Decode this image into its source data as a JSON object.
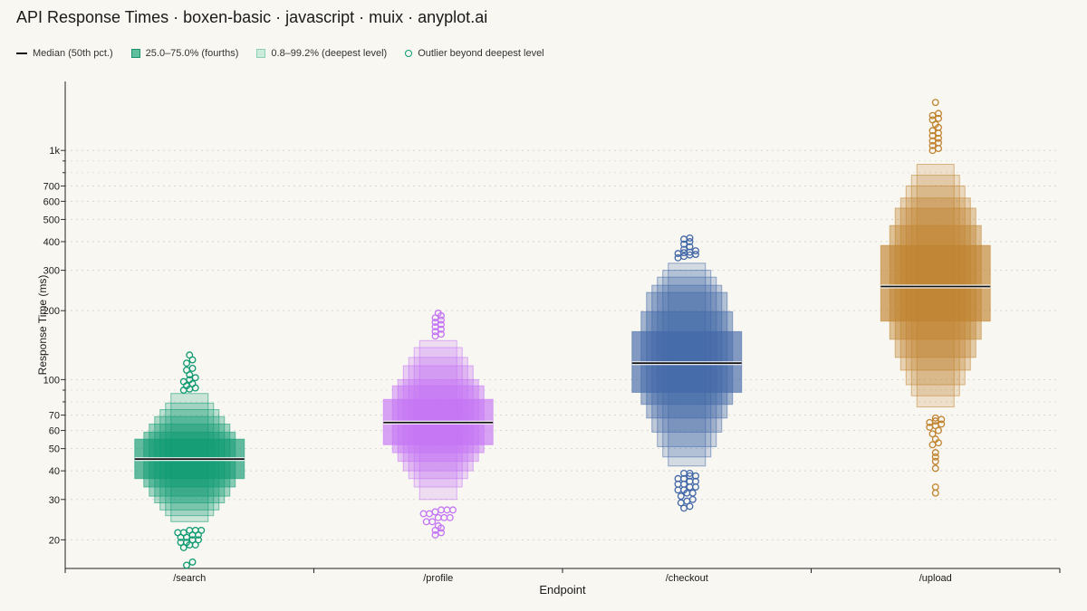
{
  "title": "API Response Times · boxen-basic · javascript · muix · anyplot.ai",
  "legend": {
    "median": "Median (50th pct.)",
    "fourths": "25.0–75.0% (fourths)",
    "deepest": "0.8–99.2% (deepest level)",
    "outlier": "Outlier beyond deepest level"
  },
  "chart_data": {
    "type": "boxen",
    "title": "API Response Times · boxen-basic · javascript · muix · anyplot.ai",
    "xlabel": "Endpoint",
    "ylabel": "Response Time (ms)",
    "y_scale": "log",
    "ylim": [
      15,
      2000
    ],
    "y_ticks": [
      20,
      30,
      40,
      50,
      60,
      70,
      100,
      200,
      300,
      400,
      500,
      600,
      700,
      1000
    ],
    "y_tick_labels": [
      "20",
      "30",
      "40",
      "50",
      "60",
      "70",
      "100",
      "200",
      "300",
      "400",
      "500",
      "600",
      "700",
      "1k"
    ],
    "y_minor_ticks": [
      80,
      90,
      800,
      900
    ],
    "grid": true,
    "legend_position": "top-left",
    "categories": [
      "/search",
      "/profile",
      "/checkout",
      "/upload"
    ],
    "series": [
      {
        "category": "/search",
        "color": "#0f9a72",
        "median": 45,
        "levels": [
          {
            "lo": 37,
            "hi": 55
          },
          {
            "lo": 34,
            "hi": 59
          },
          {
            "lo": 31,
            "hi": 64
          },
          {
            "lo": 29,
            "hi": 69
          },
          {
            "lo": 27,
            "hi": 74
          },
          {
            "lo": 25.5,
            "hi": 79
          },
          {
            "lo": 24,
            "hi": 87
          }
        ],
        "outliers": [
          15.5,
          16,
          18.5,
          19,
          19,
          19.5,
          19.5,
          20,
          20,
          20.5,
          20.5,
          21,
          21,
          21.5,
          21.5,
          22,
          22,
          22,
          90,
          91,
          92,
          94,
          96,
          98,
          100,
          102,
          105,
          110,
          112,
          118,
          122,
          128
        ]
      },
      {
        "category": "/profile",
        "color": "#c474f5",
        "median": 65,
        "levels": [
          {
            "lo": 52,
            "hi": 82
          },
          {
            "lo": 48,
            "hi": 94
          },
          {
            "lo": 44,
            "hi": 100
          },
          {
            "lo": 40,
            "hi": 115
          },
          {
            "lo": 37,
            "hi": 125
          },
          {
            "lo": 34,
            "hi": 138
          },
          {
            "lo": 30,
            "hi": 148
          }
        ],
        "outliers": [
          21,
          21.5,
          22,
          22.5,
          23,
          24,
          24,
          25,
          25,
          25,
          26,
          26,
          26.5,
          27,
          27,
          27,
          155,
          158,
          162,
          166,
          170,
          174,
          178,
          182,
          186,
          190,
          195
        ]
      },
      {
        "category": "/checkout",
        "color": "#4268a8",
        "median": 118,
        "levels": [
          {
            "lo": 88,
            "hi": 162
          },
          {
            "lo": 78,
            "hi": 198
          },
          {
            "lo": 68,
            "hi": 240
          },
          {
            "lo": 59,
            "hi": 258
          },
          {
            "lo": 51,
            "hi": 280
          },
          {
            "lo": 46,
            "hi": 300
          },
          {
            "lo": 42,
            "hi": 322
          }
        ],
        "outliers": [
          27.5,
          28,
          29,
          29.5,
          30,
          31,
          32,
          32,
          33,
          33,
          34,
          34,
          35,
          35,
          36,
          36,
          37,
          37,
          38,
          38,
          39,
          39,
          340,
          345,
          350,
          352,
          355,
          358,
          360,
          365,
          370,
          380,
          390,
          400,
          410,
          415
        ]
      },
      {
        "category": "/upload",
        "color": "#c08330",
        "median": 255,
        "levels": [
          {
            "lo": 180,
            "hi": 385
          },
          {
            "lo": 150,
            "hi": 470
          },
          {
            "lo": 125,
            "hi": 560
          },
          {
            "lo": 110,
            "hi": 620
          },
          {
            "lo": 95,
            "hi": 700
          },
          {
            "lo": 85,
            "hi": 780
          },
          {
            "lo": 76,
            "hi": 870
          }
        ],
        "outliers": [
          32,
          34,
          41,
          44,
          46,
          48,
          52,
          53,
          55,
          58,
          60,
          62,
          63,
          64,
          65,
          66,
          67,
          68,
          1000,
          1020,
          1050,
          1080,
          1100,
          1130,
          1160,
          1190,
          1220,
          1260,
          1300,
          1360,
          1380,
          1420,
          1450,
          1620
        ]
      }
    ]
  }
}
